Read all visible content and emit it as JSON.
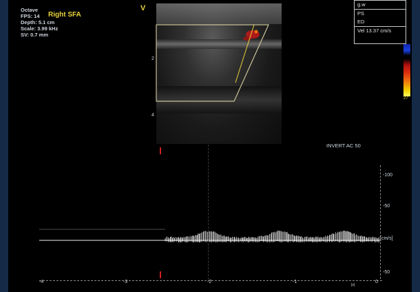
{
  "info": {
    "mode": "Octave",
    "fps": "FPS: 14",
    "depth": "Depth: 5.1 cm",
    "scale": "Scale: 3.99 kHz",
    "sv": "SV: 0.7 mm"
  },
  "vessel_label": "Right SFA",
  "probe_marker": "V",
  "depth_marks": [
    "2",
    "4"
  ],
  "legend": {
    "title": "g.w",
    "ps": "PS",
    "ed": "ED",
    "vel": "Vel 13.37 cm/s"
  },
  "colorbar_label": "27",
  "spectral": {
    "header": "INVERT   AC 50",
    "y_ticks": [
      "-100",
      "-50",
      "-50"
    ],
    "baseline_unit": "[cm/s]",
    "x_ticks": [
      "-4",
      "-3",
      "-2",
      "-1",
      "0"
    ],
    "x_unit": "[s]"
  },
  "colors": {
    "accent": "#e8d23a",
    "doppler_red": "#d02020",
    "background": "#000000",
    "frame": "#142a47"
  }
}
